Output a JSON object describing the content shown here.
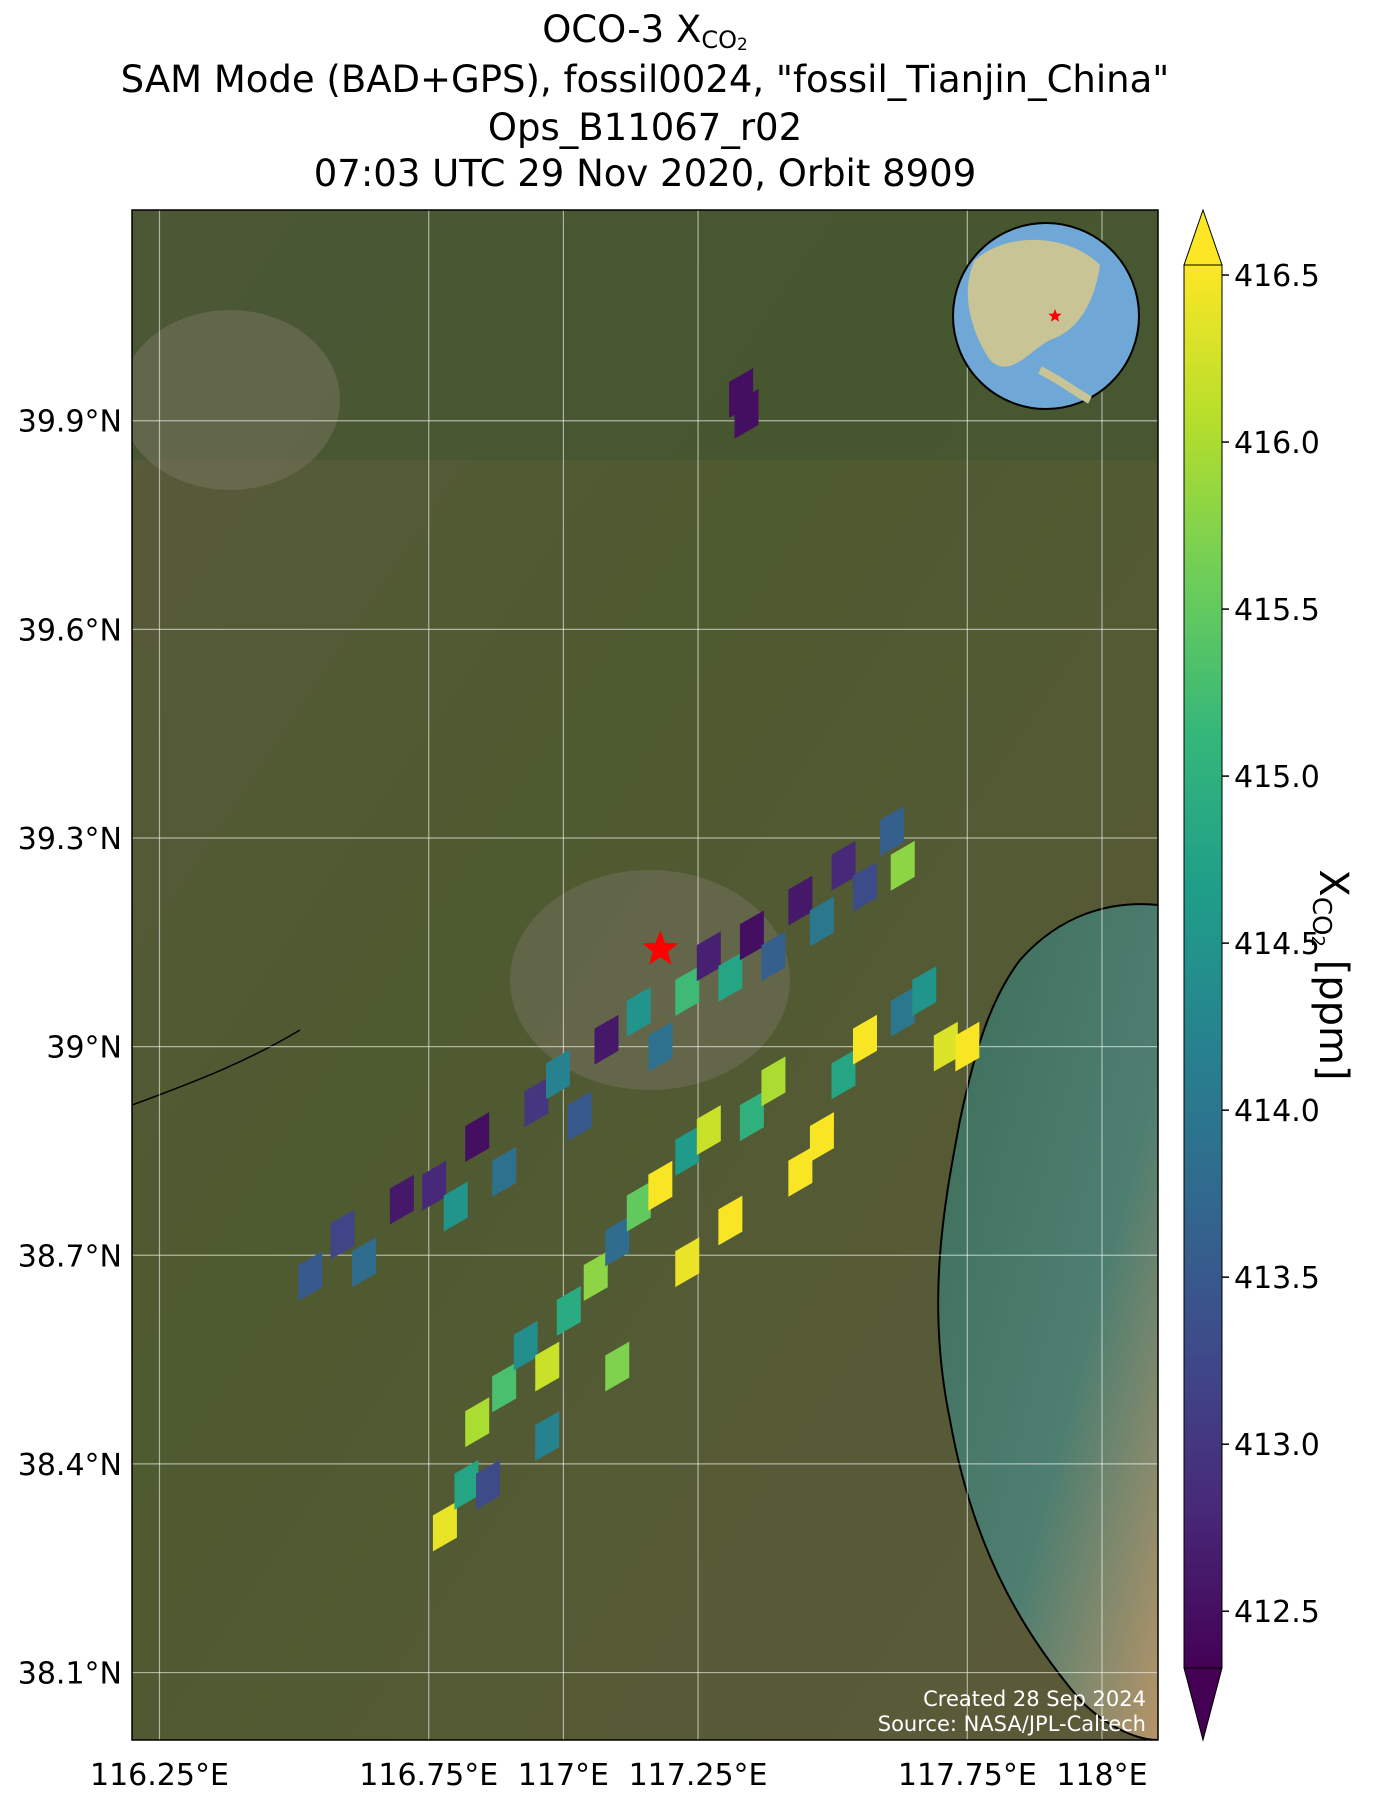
{
  "chart_data": {
    "type": "map",
    "title": [
      {
        "text": "OCO-3 X",
        "sub": "CO",
        "subsub": "2"
      },
      {
        "text": "SAM Mode (BAD+GPS), fossil0024, \"fossil_Tianjin_China\""
      },
      {
        "text": "Ops_B11067_r02"
      },
      {
        "text": "07:03 UTC 29 Nov 2020, Orbit 8909"
      }
    ],
    "colorbar_label": {
      "text": "X",
      "sub": "CO",
      "subsub": "2",
      "unit": " [ppm]"
    },
    "credits": [
      "Created 28 Sep 2024",
      "Source: NASA/JPL-Caltech"
    ],
    "xlim": [
      116.199,
      118.104
    ],
    "ylim": [
      38.003,
      40.203
    ],
    "xticks": [
      {
        "value": 116.25,
        "label": "116.25°E"
      },
      {
        "value": 116.75,
        "label": "116.75°E"
      },
      {
        "value": 117,
        "label": "117°E"
      },
      {
        "value": 117.25,
        "label": "117.25°E"
      },
      {
        "value": 117.75,
        "label": "117.75°E"
      },
      {
        "value": 118,
        "label": "118°E"
      }
    ],
    "yticks": [
      {
        "value": 39.9,
        "label": "39.9°N"
      },
      {
        "value": 39.6,
        "label": "39.6°N"
      },
      {
        "value": 39.3,
        "label": "39.3°N"
      },
      {
        "value": 39,
        "label": "39°N"
      },
      {
        "value": 38.7,
        "label": "38.7°N"
      },
      {
        "value": 38.4,
        "label": "38.4°N"
      },
      {
        "value": 38.1,
        "label": "38.1°N"
      }
    ],
    "grid": true,
    "clim": [
      412.33,
      416.53
    ],
    "cticks": [
      {
        "value": 412.5,
        "label": "412.5"
      },
      {
        "value": 413,
        "label": "413.0"
      },
      {
        "value": 413.5,
        "label": "413.5"
      },
      {
        "value": 414,
        "label": "414.0"
      },
      {
        "value": 414.5,
        "label": "414.5"
      },
      {
        "value": 415,
        "label": "415.0"
      },
      {
        "value": 415.5,
        "label": "415.5"
      },
      {
        "value": 416,
        "label": "416.0"
      },
      {
        "value": 416.5,
        "label": "416.5"
      }
    ],
    "colormap": [
      "#440154",
      "#482878",
      "#3e4989",
      "#31688e",
      "#26828e",
      "#1f9e89",
      "#35b779",
      "#6ece58",
      "#b5de2b",
      "#fde725"
    ],
    "site": {
      "lon": 117.18,
      "lat": 39.14,
      "color": "#ff0000"
    },
    "lon": [
      117.33,
      117.34,
      116.53,
      116.59,
      116.63,
      116.7,
      116.76,
      116.8,
      116.84,
      116.89,
      116.95,
      116.99,
      117.03,
      117.08,
      117.14,
      117.18,
      117.23,
      117.27,
      117.31,
      117.35,
      117.39,
      117.44,
      117.48,
      117.52,
      117.56,
      117.61,
      117.63,
      116.78,
      116.82,
      116.84,
      116.89,
      116.93,
      116.97,
      117.01,
      117.06,
      117.1,
      117.14,
      117.18,
      117.23,
      117.27,
      117.31,
      117.35,
      117.39,
      117.44,
      117.48,
      117.52,
      117.56,
      117.63,
      117.67,
      117.71,
      117.75,
      117.23,
      117.1,
      116.97,
      116.86
    ],
    "lat": [
      39.94,
      39.91,
      38.67,
      38.73,
      38.69,
      38.78,
      38.8,
      38.77,
      38.87,
      38.82,
      38.92,
      38.96,
      38.9,
      39.01,
      39.05,
      39.0,
      39.08,
      39.13,
      39.1,
      39.16,
      39.13,
      39.21,
      39.18,
      39.26,
      39.23,
      39.31,
      39.26,
      38.31,
      38.37,
      38.46,
      38.51,
      38.57,
      38.54,
      38.62,
      38.67,
      38.72,
      38.77,
      38.8,
      38.85,
      38.88,
      38.75,
      38.9,
      38.95,
      38.82,
      38.87,
      38.96,
      39.01,
      39.05,
      39.08,
      39.0,
      39.0,
      38.69,
      38.54,
      38.44,
      38.37
    ],
    "values": [
      412.5,
      412.5,
      413.5,
      413.2,
      413.8,
      412.6,
      412.8,
      414.5,
      412.5,
      413.9,
      413.0,
      414.2,
      413.5,
      412.6,
      414.5,
      413.9,
      415.2,
      412.7,
      414.8,
      412.5,
      413.6,
      412.6,
      414.0,
      412.8,
      413.3,
      413.6,
      415.8,
      416.4,
      414.8,
      416.0,
      415.3,
      414.4,
      416.2,
      414.9,
      415.8,
      413.8,
      415.5,
      416.5,
      414.6,
      416.2,
      416.5,
      415.0,
      416.0,
      416.5,
      416.5,
      414.8,
      416.5,
      414.0,
      414.5,
      416.3,
      416.5,
      416.4,
      415.7,
      414.2,
      413.3
    ]
  }
}
